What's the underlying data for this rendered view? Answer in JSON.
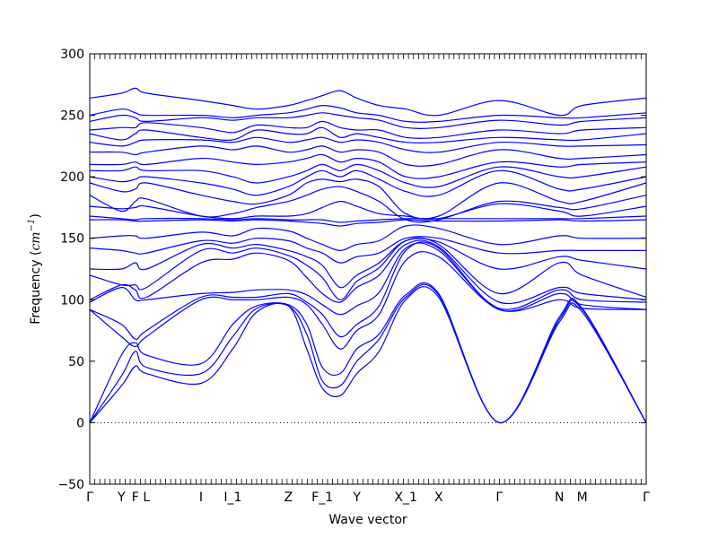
{
  "chart_data": {
    "type": "line",
    "title": "",
    "xlabel": "Wave vector",
    "ylabel": {
      "prefix": "Frequency (",
      "unit": "cm",
      "exponent": "−1",
      "suffix": ")"
    },
    "ylim": [
      -50,
      300
    ],
    "yticks": [
      -50,
      0,
      50,
      100,
      150,
      200,
      250,
      300
    ],
    "grid": false,
    "line_color": "#0000ff",
    "zero_line": {
      "y": 0,
      "style": "dotted",
      "color": "#000000"
    },
    "x_range": [
      0,
      1
    ],
    "high_symmetry_points": [
      {
        "label": "Γ",
        "x": 0.0
      },
      {
        "label": "Y",
        "x": 0.057
      },
      {
        "label": "F",
        "x": 0.082
      },
      {
        "label": "L",
        "x": 0.102
      },
      {
        "label": "I",
        "x": 0.2
      },
      {
        "label": "I_1",
        "x": 0.257
      },
      {
        "label": "Z",
        "x": 0.357
      },
      {
        "label": "F_1",
        "x": 0.418
      },
      {
        "label": "Y",
        "x": 0.48
      },
      {
        "label": "X_1",
        "x": 0.568
      },
      {
        "label": "X",
        "x": 0.627
      },
      {
        "label": "Γ",
        "x": 0.736
      },
      {
        "label": "N",
        "x": 0.844
      },
      {
        "label": "M",
        "x": 0.885
      },
      {
        "label": "Γ",
        "x": 1.0
      }
    ],
    "series": [
      {
        "values": [
          0,
          30,
          46,
          40,
          32,
          60,
          90,
          95,
          60,
          28,
          22,
          40,
          58,
          100,
          102,
          0,
          82,
          90,
          0
        ]
      },
      {
        "values": [
          0,
          38,
          58,
          45,
          40,
          70,
          93,
          95,
          72,
          34,
          30,
          50,
          68,
          102,
          104,
          0,
          84,
          92,
          0
        ]
      },
      {
        "values": [
          0,
          55,
          65,
          55,
          48,
          80,
          95,
          96,
          80,
          45,
          40,
          60,
          72,
          104,
          105,
          0,
          86,
          93,
          0
        ]
      },
      {
        "values": [
          92,
          70,
          62,
          70,
          100,
          100,
          100,
          102,
          96,
          80,
          60,
          75,
          88,
          132,
          135,
          92,
          100,
          93,
          92
        ]
      },
      {
        "values": [
          92,
          80,
          68,
          75,
          102,
          102,
          102,
          105,
          98,
          88,
          70,
          80,
          95,
          140,
          142,
          92,
          105,
          96,
          92
        ]
      },
      {
        "values": [
          98,
          110,
          100,
          100,
          105,
          106,
          108,
          108,
          104,
          96,
          88,
          95,
          106,
          142,
          140,
          93,
          108,
          100,
          98
        ]
      },
      {
        "values": [
          100,
          112,
          108,
          102,
          130,
          133,
          138,
          132,
          118,
          105,
          98,
          110,
          120,
          145,
          143,
          98,
          110,
          105,
          100
        ]
      },
      {
        "values": [
          120,
          112,
          112,
          110,
          140,
          138,
          142,
          136,
          128,
          118,
          100,
          115,
          126,
          148,
          145,
          105,
          130,
          120,
          102
        ]
      },
      {
        "values": [
          125,
          125,
          130,
          125,
          145,
          142,
          145,
          140,
          135,
          128,
          110,
          120,
          130,
          148,
          147,
          125,
          135,
          132,
          125
        ]
      },
      {
        "values": [
          142,
          140,
          138,
          138,
          148,
          146,
          150,
          148,
          142,
          138,
          130,
          135,
          138,
          150,
          150,
          138,
          140,
          140,
          140
        ]
      },
      {
        "values": [
          150,
          152,
          152,
          150,
          155,
          152,
          158,
          156,
          150,
          145,
          140,
          145,
          148,
          160,
          158,
          145,
          152,
          150,
          150
        ]
      },
      {
        "values": [
          165,
          165,
          164,
          164,
          165,
          164,
          165,
          164,
          163,
          162,
          160,
          162,
          163,
          165,
          164,
          164,
          165,
          164,
          165
        ]
      },
      {
        "values": [
          168,
          166,
          165,
          166,
          166,
          165,
          166,
          165,
          165,
          165,
          163,
          164,
          165,
          166,
          166,
          166,
          166,
          166,
          168
        ]
      },
      {
        "values": [
          176,
          174,
          175,
          176,
          168,
          166,
          168,
          168,
          170,
          175,
          180,
          176,
          170,
          168,
          166,
          178,
          172,
          168,
          176
        ]
      },
      {
        "values": [
          185,
          172,
          180,
          182,
          168,
          170,
          175,
          180,
          185,
          190,
          192,
          188,
          180,
          165,
          165,
          180,
          175,
          174,
          185
        ]
      },
      {
        "values": [
          195,
          188,
          190,
          195,
          185,
          180,
          178,
          185,
          195,
          198,
          196,
          198,
          192,
          170,
          168,
          195,
          180,
          180,
          195
        ]
      },
      {
        "values": [
          200,
          196,
          198,
          200,
          195,
          190,
          185,
          192,
          200,
          205,
          200,
          205,
          198,
          188,
          185,
          205,
          190,
          190,
          200
        ]
      },
      {
        "values": [
          205,
          205,
          208,
          205,
          205,
          200,
          195,
          200,
          205,
          210,
          205,
          210,
          205,
          195,
          192,
          208,
          200,
          200,
          208
        ]
      },
      {
        "values": [
          210,
          210,
          212,
          210,
          215,
          212,
          210,
          212,
          215,
          218,
          212,
          215,
          212,
          200,
          200,
          212,
          208,
          210,
          212
        ]
      },
      {
        "values": [
          220,
          220,
          218,
          220,
          225,
          222,
          225,
          220,
          222,
          225,
          220,
          222,
          220,
          210,
          210,
          222,
          215,
          215,
          218
        ]
      },
      {
        "values": [
          228,
          225,
          228,
          230,
          230,
          228,
          232,
          228,
          230,
          232,
          228,
          230,
          228,
          222,
          220,
          228,
          225,
          225,
          226
        ]
      },
      {
        "values": [
          235,
          230,
          235,
          238,
          232,
          230,
          238,
          235,
          235,
          240,
          232,
          235,
          232,
          228,
          228,
          232,
          230,
          230,
          235
        ]
      },
      {
        "values": [
          238,
          240,
          240,
          244,
          240,
          236,
          242,
          240,
          240,
          245,
          240,
          238,
          238,
          232,
          232,
          238,
          235,
          238,
          240
        ]
      },
      {
        "values": [
          245,
          250,
          248,
          245,
          248,
          246,
          248,
          248,
          250,
          252,
          250,
          248,
          246,
          240,
          240,
          246,
          242,
          245,
          248
        ]
      },
      {
        "values": [
          250,
          255,
          252,
          250,
          250,
          248,
          250,
          252,
          255,
          258,
          256,
          252,
          250,
          245,
          245,
          250,
          248,
          248,
          252
        ]
      },
      {
        "values": [
          264,
          268,
          272,
          268,
          262,
          258,
          255,
          258,
          262,
          266,
          270,
          264,
          258,
          255,
          250,
          262,
          250,
          258,
          264
        ]
      }
    ],
    "series_x": [
      0.0,
      0.057,
      0.082,
      0.102,
      0.2,
      0.257,
      0.3,
      0.357,
      0.39,
      0.418,
      0.45,
      0.48,
      0.52,
      0.568,
      0.627,
      0.736,
      0.844,
      0.885,
      1.0
    ]
  }
}
